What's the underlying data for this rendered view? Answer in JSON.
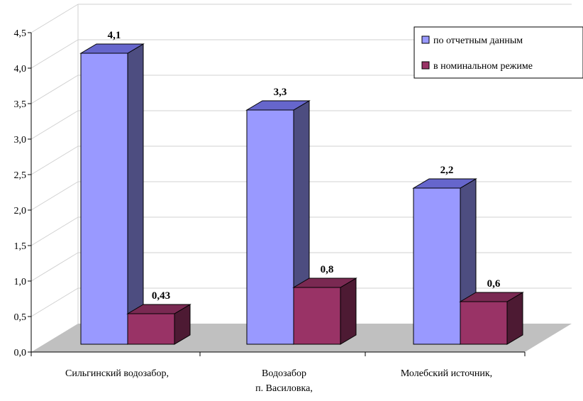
{
  "chart_data": {
    "type": "bar",
    "categories": [
      [
        "Сильгинский водозабор,"
      ],
      [
        "Водозабор",
        "п. Василовка,"
      ],
      [
        "Молебский источник,"
      ]
    ],
    "series": [
      {
        "name": "по отчетным данным",
        "values": [
          4.1,
          3.3,
          2.2
        ],
        "labels": [
          "4,1",
          "3,3",
          "2,2"
        ],
        "color": "#9999ff"
      },
      {
        "name": "в номинальном режиме",
        "values": [
          0.43,
          0.8,
          0.6
        ],
        "labels": [
          "0,43",
          "0,8",
          "0,6"
        ],
        "color": "#993366"
      }
    ],
    "ylim": [
      0,
      4.5
    ],
    "yticks": [
      0,
      0.5,
      1.0,
      1.5,
      2.0,
      2.5,
      3.0,
      3.5,
      4.0,
      4.5
    ],
    "ytick_labels": [
      "0,0",
      "0,5",
      "1,0",
      "1,5",
      "2,0",
      "2,5",
      "3,0",
      "3,5",
      "4,0",
      "4,5"
    ],
    "grid": true,
    "three_d": true,
    "legend_position": "top-right",
    "colors": {
      "floor": "#c0c0c0",
      "axis": "#000000",
      "grid": "#d0d0d0"
    }
  }
}
